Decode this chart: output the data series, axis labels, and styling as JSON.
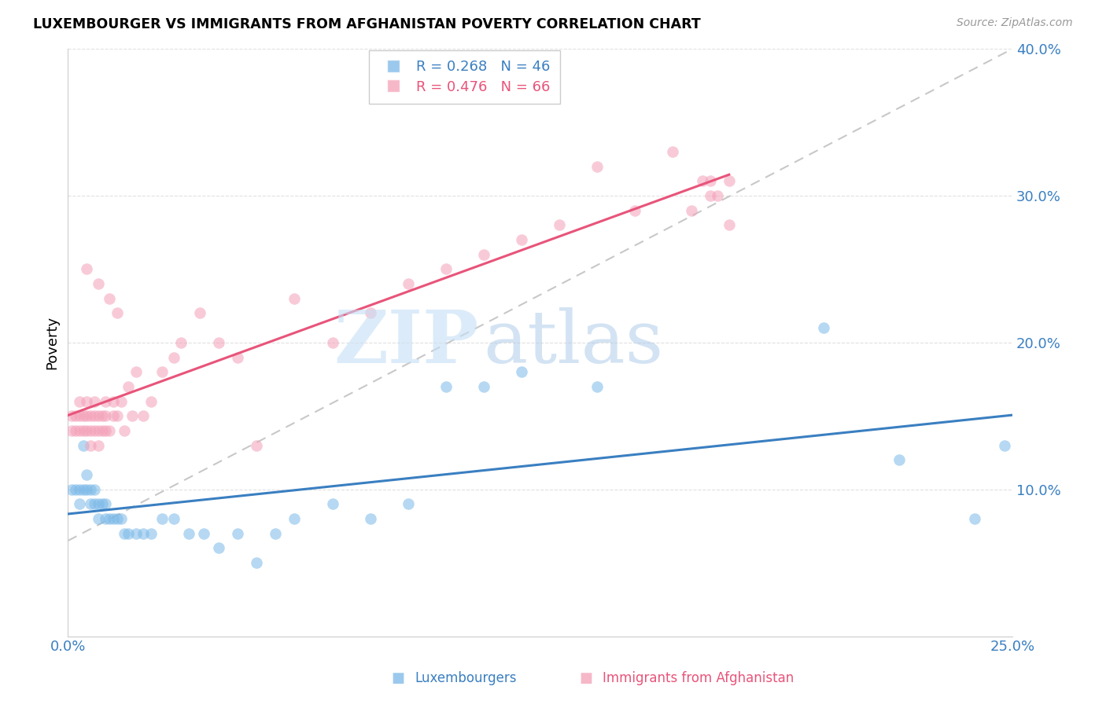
{
  "title": "LUXEMBOURGER VS IMMIGRANTS FROM AFGHANISTAN POVERTY CORRELATION CHART",
  "source": "Source: ZipAtlas.com",
  "ylabel": "Poverty",
  "yticks": [
    0.0,
    0.1,
    0.2,
    0.3,
    0.4
  ],
  "ytick_labels": [
    "",
    "10.0%",
    "20.0%",
    "30.0%",
    "40.0%"
  ],
  "xticks": [
    0.0,
    0.05,
    0.1,
    0.15,
    0.2,
    0.25
  ],
  "xtick_labels": [
    "0.0%",
    "",
    "",
    "",
    "",
    "25.0%"
  ],
  "xlim": [
    0.0,
    0.25
  ],
  "ylim": [
    0.0,
    0.4
  ],
  "legend1_R": "0.268",
  "legend1_N": "46",
  "legend2_R": "0.476",
  "legend2_N": "66",
  "color_blue": "#7ab8e8",
  "color_pink": "#f4a0b8",
  "color_line_blue": "#3a7fc1",
  "color_line_pink": "#e8547a",
  "color_diagonal": "#c8c8c8",
  "watermark_zip": "ZIP",
  "watermark_atlas": "atlas",
  "blue_scatter_x": [
    0.001,
    0.002,
    0.003,
    0.003,
    0.004,
    0.004,
    0.005,
    0.005,
    0.006,
    0.006,
    0.007,
    0.007,
    0.008,
    0.008,
    0.009,
    0.01,
    0.01,
    0.011,
    0.012,
    0.013,
    0.014,
    0.015,
    0.016,
    0.018,
    0.02,
    0.022,
    0.025,
    0.028,
    0.032,
    0.036,
    0.04,
    0.045,
    0.05,
    0.055,
    0.06,
    0.07,
    0.08,
    0.09,
    0.1,
    0.11,
    0.12,
    0.14,
    0.2,
    0.22,
    0.24,
    0.248
  ],
  "blue_scatter_y": [
    0.1,
    0.1,
    0.09,
    0.1,
    0.1,
    0.13,
    0.1,
    0.11,
    0.1,
    0.09,
    0.09,
    0.1,
    0.09,
    0.08,
    0.09,
    0.09,
    0.08,
    0.08,
    0.08,
    0.08,
    0.08,
    0.07,
    0.07,
    0.07,
    0.07,
    0.07,
    0.08,
    0.08,
    0.07,
    0.07,
    0.06,
    0.07,
    0.05,
    0.07,
    0.08,
    0.09,
    0.08,
    0.09,
    0.17,
    0.17,
    0.18,
    0.17,
    0.21,
    0.12,
    0.08,
    0.13
  ],
  "pink_scatter_x": [
    0.001,
    0.001,
    0.002,
    0.002,
    0.003,
    0.003,
    0.003,
    0.004,
    0.004,
    0.005,
    0.005,
    0.005,
    0.005,
    0.006,
    0.006,
    0.006,
    0.007,
    0.007,
    0.007,
    0.008,
    0.008,
    0.008,
    0.008,
    0.009,
    0.009,
    0.01,
    0.01,
    0.01,
    0.011,
    0.011,
    0.012,
    0.012,
    0.013,
    0.013,
    0.014,
    0.015,
    0.016,
    0.017,
    0.018,
    0.02,
    0.022,
    0.025,
    0.028,
    0.03,
    0.035,
    0.04,
    0.045,
    0.05,
    0.06,
    0.07,
    0.08,
    0.09,
    0.1,
    0.11,
    0.12,
    0.13,
    0.14,
    0.15,
    0.16,
    0.165,
    0.168,
    0.17,
    0.17,
    0.172,
    0.175,
    0.175
  ],
  "pink_scatter_y": [
    0.14,
    0.15,
    0.14,
    0.15,
    0.14,
    0.15,
    0.16,
    0.14,
    0.15,
    0.14,
    0.15,
    0.16,
    0.25,
    0.13,
    0.14,
    0.15,
    0.14,
    0.15,
    0.16,
    0.13,
    0.14,
    0.15,
    0.24,
    0.14,
    0.15,
    0.14,
    0.15,
    0.16,
    0.14,
    0.23,
    0.15,
    0.16,
    0.15,
    0.22,
    0.16,
    0.14,
    0.17,
    0.15,
    0.18,
    0.15,
    0.16,
    0.18,
    0.19,
    0.2,
    0.22,
    0.2,
    0.19,
    0.13,
    0.23,
    0.2,
    0.22,
    0.24,
    0.25,
    0.26,
    0.27,
    0.28,
    0.32,
    0.29,
    0.33,
    0.29,
    0.31,
    0.3,
    0.31,
    0.3,
    0.28,
    0.31
  ]
}
